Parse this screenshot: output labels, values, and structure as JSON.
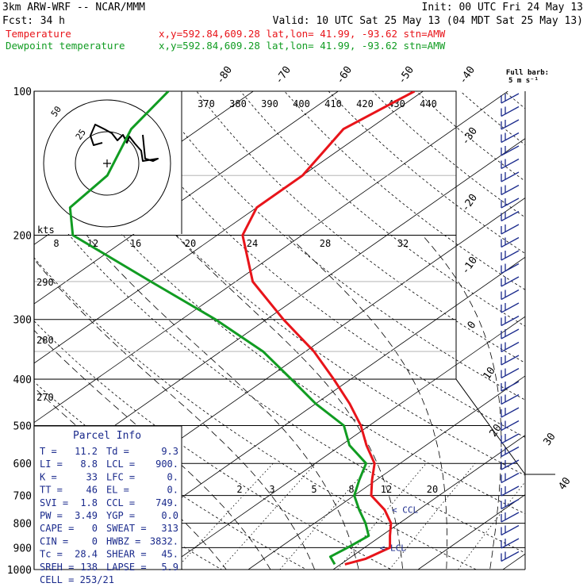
{
  "header": {
    "model": "3km ARW-WRF -- NCAR/MMM",
    "init": "Init: 00 UTC Fri 24 May 13",
    "fcst_label": "Fcst:",
    "fcst_value": "34 h",
    "valid": "Valid: 10 UTC Sat 25 May 13 (04 MDT Sat 25 May 13)",
    "temp_legend": "Temperature",
    "temp_loc": "x,y=592.84,609.28   lat,lon= 41.99, -93.62  stn=AMW",
    "dew_legend": "Dewpoint temperature",
    "dew_loc": "x,y=592.84,609.28   lat,lon= 41.99, -93.62  stn=AMW",
    "barb_title": "Full barb:",
    "barb_unit": "5 m s⁻¹"
  },
  "colors": {
    "temperature": "#e8141a",
    "dewpoint": "#119c22",
    "parcel": "#1a2a8c",
    "frame": "#000000"
  },
  "chart_data": {
    "type": "line",
    "title": "",
    "pressure_levels": [
      {
        "p": 100,
        "label": "100"
      },
      {
        "p": 200,
        "label": "200"
      },
      {
        "p": 300,
        "label": "300"
      },
      {
        "p": 400,
        "label": "400"
      },
      {
        "p": 500,
        "label": "500"
      },
      {
        "p": 600,
        "label": "600"
      },
      {
        "p": 700,
        "label": "700"
      },
      {
        "p": 800,
        "label": "800"
      },
      {
        "p": 900,
        "label": "900"
      },
      {
        "p": 1000,
        "label": "1000"
      }
    ],
    "isotherm_labels": [
      {
        "t": -80,
        "label": "-80"
      },
      {
        "t": -70,
        "label": "-70"
      },
      {
        "t": -60,
        "label": "-60"
      },
      {
        "t": -50,
        "label": "-50"
      },
      {
        "t": -40,
        "label": "-40"
      },
      {
        "t": -30,
        "label": "-30"
      },
      {
        "t": -20,
        "label": "-20"
      },
      {
        "t": -10,
        "label": "-10"
      },
      {
        "t": 0,
        "label": "0"
      },
      {
        "t": 10,
        "label": "10"
      },
      {
        "t": 20,
        "label": "20"
      },
      {
        "t": 30,
        "label": "30"
      },
      {
        "t": 40,
        "label": "40"
      }
    ],
    "theta_e_labels": [
      "370",
      "380",
      "390",
      "400",
      "410",
      "420",
      "430",
      "440"
    ],
    "theta_labels": [
      "290",
      "280",
      "270"
    ],
    "wind_speed_labels": [
      "8",
      "12",
      "16",
      "20",
      "24",
      "28",
      "32"
    ],
    "mixing_ratio_labels": [
      "2",
      "3",
      "5",
      "8",
      "12",
      "20"
    ],
    "temperature": [
      {
        "p": 100,
        "t": -61
      },
      {
        "p": 120,
        "t": -63
      },
      {
        "p": 150,
        "t": -60
      },
      {
        "p": 175,
        "t": -60
      },
      {
        "p": 200,
        "t": -57
      },
      {
        "p": 250,
        "t": -48
      },
      {
        "p": 300,
        "t": -38
      },
      {
        "p": 350,
        "t": -29
      },
      {
        "p": 400,
        "t": -22
      },
      {
        "p": 450,
        "t": -16
      },
      {
        "p": 500,
        "t": -11
      },
      {
        "p": 550,
        "t": -7
      },
      {
        "p": 600,
        "t": -3
      },
      {
        "p": 650,
        "t": -0.5
      },
      {
        "p": 700,
        "t": 2
      },
      {
        "p": 750,
        "t": 6
      },
      {
        "p": 800,
        "t": 9
      },
      {
        "p": 850,
        "t": 11
      },
      {
        "p": 900,
        "t": 13
      },
      {
        "p": 950,
        "t": 12
      },
      {
        "p": 975,
        "t": 10.5
      }
    ],
    "dewpoint": [
      {
        "p": 100,
        "t": -90
      },
      {
        "p": 120,
        "t": -88
      },
      {
        "p": 150,
        "t": -83
      },
      {
        "p": 175,
        "t": -82
      },
      {
        "p": 200,
        "t": -77
      },
      {
        "p": 250,
        "t": -60
      },
      {
        "p": 300,
        "t": -46
      },
      {
        "p": 350,
        "t": -35
      },
      {
        "p": 400,
        "t": -27
      },
      {
        "p": 450,
        "t": -20
      },
      {
        "p": 500,
        "t": -13
      },
      {
        "p": 550,
        "t": -9
      },
      {
        "p": 600,
        "t": -4
      },
      {
        "p": 650,
        "t": -2
      },
      {
        "p": 700,
        "t": 0
      },
      {
        "p": 750,
        "t": 3
      },
      {
        "p": 800,
        "t": 6
      },
      {
        "p": 850,
        "t": 8.5
      },
      {
        "p": 900,
        "t": 8
      },
      {
        "p": 940,
        "t": 7.5
      },
      {
        "p": 975,
        "t": 9.3
      }
    ],
    "parcel_markers": [
      {
        "label": "CCL",
        "p": 749,
        "t": 4
      },
      {
        "label": "LCL",
        "p": 900,
        "t": 9
      }
    ]
  },
  "parcel_info": {
    "title": "Parcel Info",
    "rows": [
      [
        {
          "k": "T",
          "v": "11.2"
        },
        {
          "k": "Td",
          "v": "9.3"
        }
      ],
      [
        {
          "k": "LI",
          "v": "8.8"
        },
        {
          "k": "LCL",
          "v": "900."
        }
      ],
      [
        {
          "k": "K",
          "v": "33"
        },
        {
          "k": "LFC",
          "v": "0."
        }
      ],
      [
        {
          "k": "TT",
          "v": "46"
        },
        {
          "k": "EL",
          "v": "0."
        }
      ],
      [
        {
          "k": "SVI",
          "v": "1.8"
        },
        {
          "k": "CCL",
          "v": "749."
        }
      ],
      [
        {
          "k": "PW",
          "v": "3.49"
        },
        {
          "k": "YGP",
          "v": "0.0"
        }
      ],
      [
        {
          "k": "CAPE",
          "v": "0"
        },
        {
          "k": "SWEAT",
          "v": "313"
        }
      ],
      [
        {
          "k": "CIN",
          "v": "0"
        },
        {
          "k": "HWBZ",
          "v": "3832."
        }
      ],
      [
        {
          "k": "Tc",
          "v": "28.4"
        },
        {
          "k": "SHEAR",
          "v": "45."
        }
      ],
      [
        {
          "k": "SREH",
          "v": "138"
        },
        {
          "k": "LAPSE",
          "v": "5.9"
        }
      ]
    ],
    "cell_label": "CELL",
    "cell_value": "253/21"
  },
  "hodograph": {
    "units_label": "kts",
    "ring_labels": [
      "50",
      "25"
    ]
  }
}
